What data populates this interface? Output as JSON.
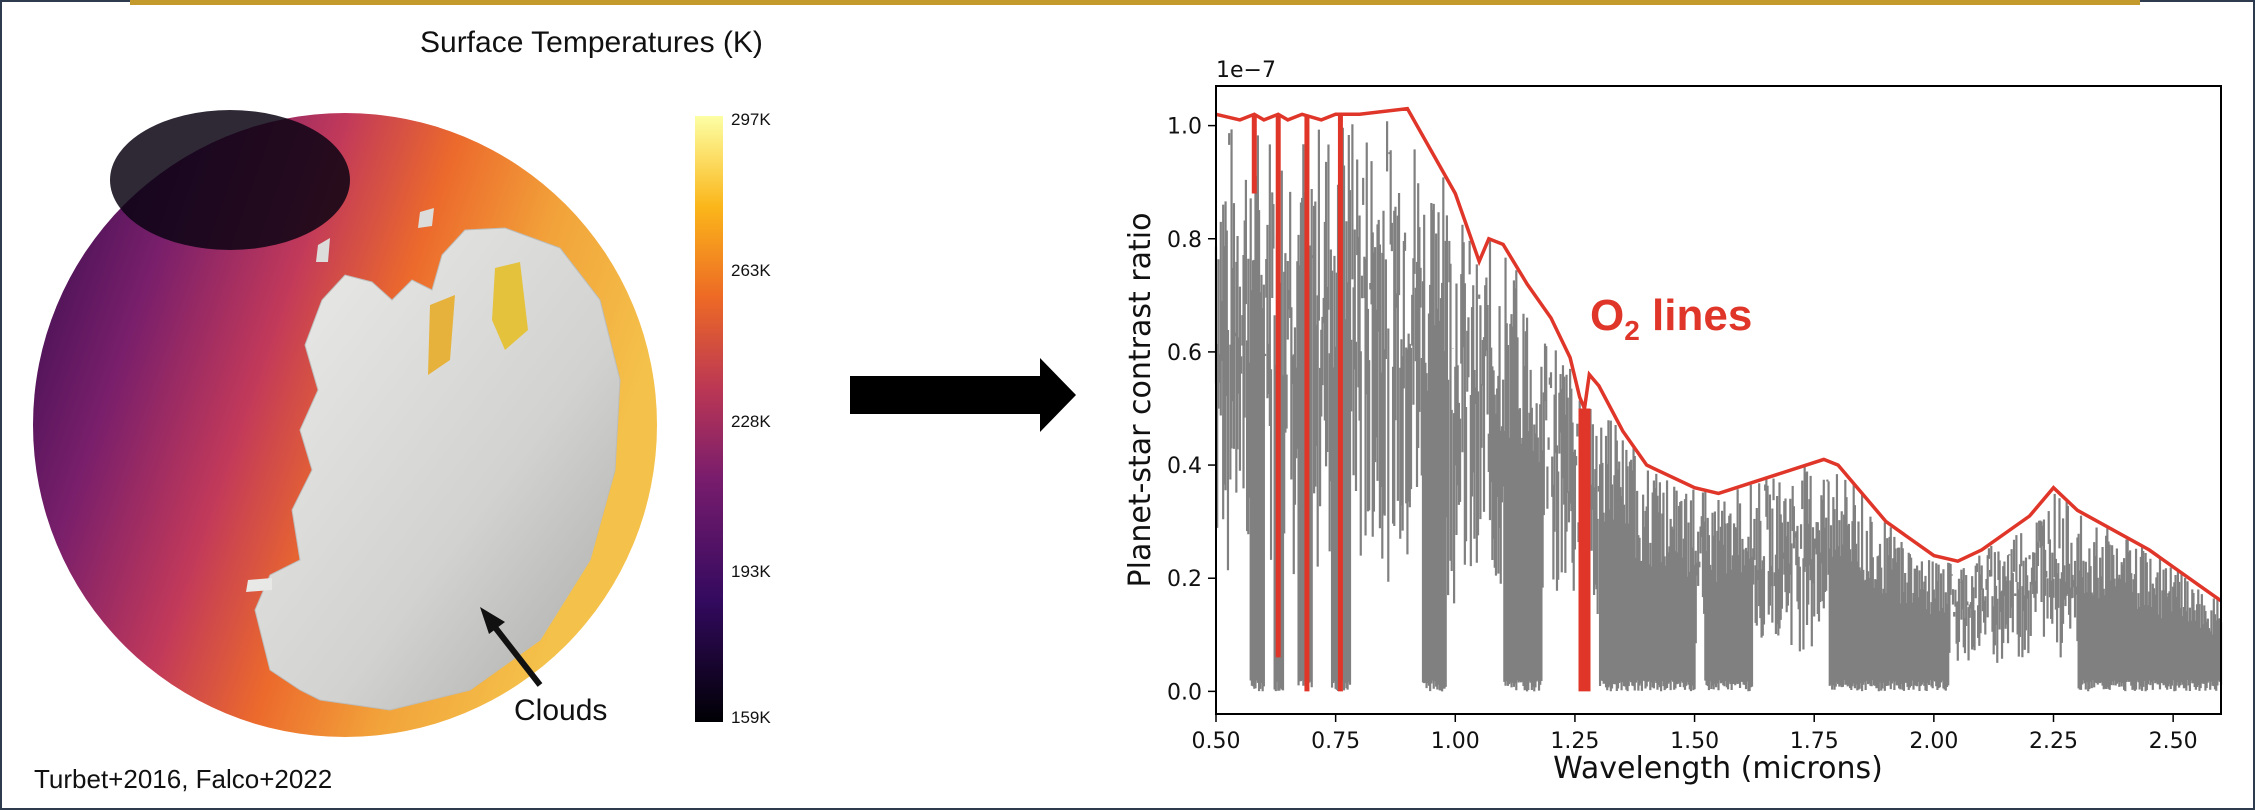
{
  "left_panel": {
    "title": "Surface Temperatures (K)",
    "clouds_label": "Clouds",
    "citation": "Turbet+2016, Falco+2022",
    "colorbar_ticks": [
      "297K",
      "263K",
      "228K",
      "193K",
      "159K"
    ]
  },
  "chart_data": {
    "type": "line",
    "xlabel": "Wavelength (microns)",
    "ylabel": "Planet-star contrast ratio",
    "offset_label": "1e−7",
    "annotation": {
      "text": "O",
      "subscript": "2",
      "suffix": " lines",
      "color": "#e0362a"
    },
    "xlim": [
      0.5,
      2.6
    ],
    "ylim": [
      -0.04,
      1.07
    ],
    "x_ticks": [
      "0.50",
      "0.75",
      "1.00",
      "1.25",
      "1.50",
      "1.75",
      "2.00",
      "2.25",
      "2.50"
    ],
    "y_ticks": [
      "0.0",
      "0.2",
      "0.4",
      "0.6",
      "0.8",
      "1.0"
    ],
    "colors": {
      "envelope": "#e0362a",
      "spectrum": "#808080"
    },
    "series": [
      {
        "x": [
          0.5,
          0.55,
          0.58,
          0.6,
          0.63,
          0.65,
          0.68,
          0.72,
          0.75,
          0.8,
          0.9,
          1.0,
          1.05,
          1.07,
          1.1,
          1.15,
          1.2,
          1.24,
          1.26,
          1.27,
          1.28,
          1.3,
          1.35,
          1.4,
          1.5,
          1.55,
          1.77,
          1.8,
          1.9,
          2.0,
          2.05,
          2.1,
          2.2,
          2.25,
          2.3,
          2.45,
          2.55,
          2.6
        ],
        "y": [
          1.02,
          1.01,
          1.02,
          1.01,
          1.02,
          1.01,
          1.02,
          1.01,
          1.02,
          1.02,
          1.03,
          0.88,
          0.76,
          0.8,
          0.79,
          0.72,
          0.66,
          0.59,
          0.52,
          0.5,
          0.56,
          0.54,
          0.46,
          0.4,
          0.36,
          0.35,
          0.41,
          0.4,
          0.3,
          0.24,
          0.23,
          0.25,
          0.31,
          0.36,
          0.32,
          0.25,
          0.19,
          0.16
        ]
      },
      {
        "x": [
          0.58,
          0.63,
          0.69,
          0.76,
          1.27
        ],
        "y": [
          0.88,
          0.06,
          0.0,
          0.0,
          0.0
        ]
      }
    ]
  }
}
